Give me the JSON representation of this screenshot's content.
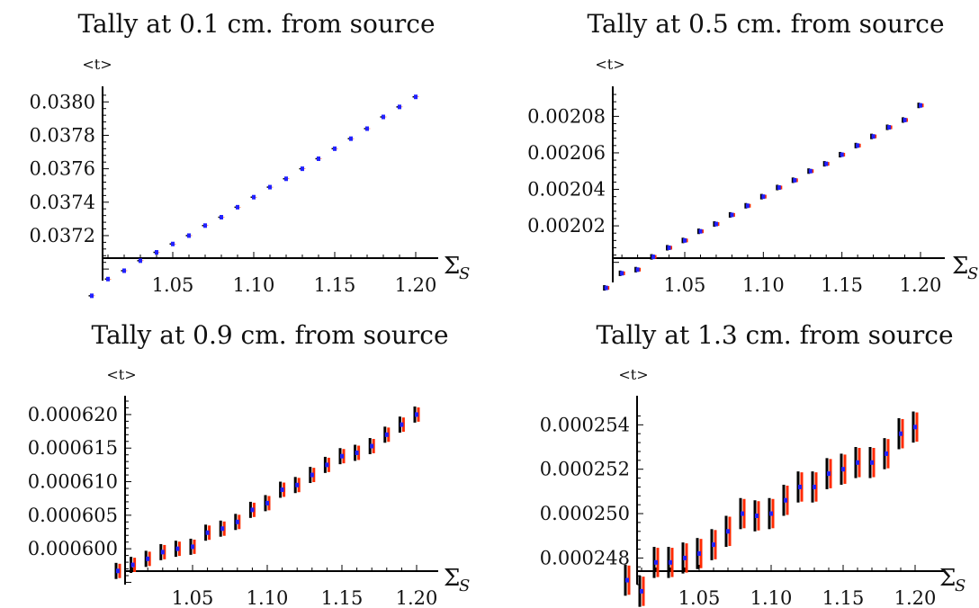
{
  "chart_data": [
    {
      "type": "scatter",
      "title": "Tally at 0.1 cm. from source",
      "ylabel": "<t>",
      "xlabel": "Σ",
      "xlabel_sub": "S",
      "xlim": [
        1.0,
        1.2
      ],
      "ylim": [
        0.03692,
        0.03805
      ],
      "xticks": [
        1.05,
        1.1,
        1.15,
        1.2
      ],
      "xtick_labels": [
        "1.05",
        "1.10",
        "1.15",
        "1.20"
      ],
      "yticks": [
        0.0372,
        0.0374,
        0.0376,
        0.0378,
        0.038
      ],
      "ytick_labels": [
        "0.0372",
        "0.0374",
        "0.0376",
        "0.0378",
        "0.0380"
      ],
      "grid": false,
      "x": [
        1.0,
        1.01,
        1.02,
        1.03,
        1.04,
        1.05,
        1.06,
        1.07,
        1.08,
        1.09,
        1.1,
        1.11,
        1.12,
        1.13,
        1.14,
        1.15,
        1.16,
        1.17,
        1.18,
        1.19,
        1.2
      ],
      "y": [
        0.03684,
        0.03694,
        0.03699,
        0.03705,
        0.0371,
        0.03715,
        0.0372,
        0.03726,
        0.03731,
        0.03737,
        0.03743,
        0.03749,
        0.03754,
        0.0376,
        0.03766,
        0.03772,
        0.03778,
        0.03784,
        0.03791,
        0.03797,
        0.03803
      ],
      "err": [
        4e-06,
        4e-06,
        4e-06,
        4e-06,
        4e-06,
        4e-06,
        4e-06,
        4e-06,
        4e-06,
        4e-06,
        4e-06,
        4e-06,
        4e-06,
        4e-06,
        4e-06,
        4e-06,
        4e-06,
        4e-06,
        4e-06,
        4e-06,
        4e-06
      ]
    },
    {
      "type": "scatter",
      "title": "Tally at 0.5 cm. from source",
      "ylabel": "<t>",
      "xlabel": "Σ",
      "xlabel_sub": "S",
      "xlim": [
        1.0,
        1.2
      ],
      "ylim": [
        0.001989,
        0.002093
      ],
      "xticks": [
        1.05,
        1.1,
        1.15,
        1.2
      ],
      "xtick_labels": [
        "1.05",
        "1.10",
        "1.15",
        "1.20"
      ],
      "yticks": [
        0.00202,
        0.00204,
        0.00206,
        0.00208
      ],
      "ytick_labels": [
        "0.00202",
        "0.00204",
        "0.00206",
        "0.00208"
      ],
      "grid": false,
      "x": [
        1.0,
        1.01,
        1.02,
        1.03,
        1.04,
        1.05,
        1.06,
        1.07,
        1.08,
        1.09,
        1.1,
        1.11,
        1.12,
        1.13,
        1.14,
        1.15,
        1.16,
        1.17,
        1.18,
        1.19,
        1.2
      ],
      "y": [
        0.001986,
        0.001994,
        0.001996,
        0.002003,
        0.002008,
        0.002012,
        0.002017,
        0.002021,
        0.002026,
        0.002031,
        0.002036,
        0.002041,
        0.002045,
        0.00205,
        0.002054,
        0.002059,
        0.002064,
        0.002069,
        0.002074,
        0.002078,
        0.002086
      ],
      "err": [
        1.5e-06,
        1.5e-06,
        1.5e-06,
        1.5e-06,
        1.5e-06,
        1.5e-06,
        1.5e-06,
        1.5e-06,
        1.5e-06,
        1.5e-06,
        1.5e-06,
        1.5e-06,
        1.5e-06,
        1.5e-06,
        1.5e-06,
        1.5e-06,
        1.5e-06,
        1.5e-06,
        1.5e-06,
        1.5e-06,
        1.5e-06
      ]
    },
    {
      "type": "scatter",
      "title": "Tally at 0.9 cm. from source",
      "ylabel": "<t>",
      "xlabel": "Σ",
      "xlabel_sub": "S",
      "xlim": [
        1.0,
        1.2
      ],
      "ylim": [
        0.000596,
        0.000622
      ],
      "xticks": [
        1.05,
        1.1,
        1.15,
        1.2
      ],
      "xtick_labels": [
        "1.05",
        "1.10",
        "1.15",
        "1.20"
      ],
      "yticks": [
        0.0006,
        0.000605,
        0.00061,
        0.000615,
        0.00062
      ],
      "ytick_labels": [
        "0.000600",
        "0.000605",
        "0.000610",
        "0.000615",
        "0.000620"
      ],
      "grid": false,
      "x": [
        1.0,
        1.01,
        1.02,
        1.03,
        1.04,
        1.05,
        1.06,
        1.07,
        1.08,
        1.09,
        1.1,
        1.11,
        1.12,
        1.13,
        1.14,
        1.15,
        1.16,
        1.17,
        1.18,
        1.19,
        1.2
      ],
      "y": [
        0.0005967,
        0.0005976,
        0.0005985,
        0.0005995,
        0.0006,
        0.0006003,
        0.0006024,
        0.000603,
        0.000604,
        0.0006058,
        0.0006068,
        0.0006088,
        0.0006095,
        0.000611,
        0.0006125,
        0.0006138,
        0.0006143,
        0.0006153,
        0.000617,
        0.0006185,
        0.00062
      ],
      "err": [
        1.2e-06,
        1.2e-06,
        1.2e-06,
        1.2e-06,
        1.2e-06,
        1.2e-06,
        1.2e-06,
        1.2e-06,
        1.2e-06,
        1.2e-06,
        1.2e-06,
        1.2e-06,
        1.2e-06,
        1.2e-06,
        1.2e-06,
        1.2e-06,
        1.2e-06,
        1.2e-06,
        1.2e-06,
        1.2e-06,
        1.2e-06
      ]
    },
    {
      "type": "scatter",
      "title": "Tally at 1.3 cm. from source",
      "ylabel": "<t>",
      "xlabel": "Σ",
      "xlabel_sub": "S",
      "xlim": [
        1.0,
        1.2
      ],
      "ylim": [
        0.0002468,
        0.0002545
      ],
      "xticks": [
        1.05,
        1.1,
        1.15,
        1.2
      ],
      "xtick_labels": [
        "1.05",
        "1.10",
        "1.15",
        "1.20"
      ],
      "yticks": [
        0.000248,
        0.00025,
        0.000252,
        0.000254
      ],
      "ytick_labels": [
        "0.000248",
        "0.000250",
        "0.000252",
        "0.000254"
      ],
      "grid": false,
      "x": [
        1.0,
        1.01,
        1.02,
        1.03,
        1.04,
        1.05,
        1.06,
        1.07,
        1.08,
        1.09,
        1.1,
        1.11,
        1.12,
        1.13,
        1.14,
        1.15,
        1.16,
        1.17,
        1.18,
        1.19,
        1.2
      ],
      "y": [
        0.000247,
        0.0002465,
        0.0002478,
        0.0002478,
        0.000248,
        0.0002482,
        0.0002486,
        0.0002492,
        0.00025,
        0.0002499,
        0.00025,
        0.0002506,
        0.0002512,
        0.0002512,
        0.0002518,
        0.000252,
        0.0002523,
        0.0002523,
        0.0002527,
        0.0002536,
        0.0002539
      ],
      "err": [
        7e-07,
        7e-07,
        7e-07,
        7e-07,
        7e-07,
        7e-07,
        7e-07,
        7e-07,
        7e-07,
        7e-07,
        7e-07,
        7e-07,
        7e-07,
        7e-07,
        7e-07,
        7e-07,
        7e-07,
        7e-07,
        7e-07,
        7e-07,
        7e-07
      ]
    }
  ],
  "colors": {
    "error_bar": "#000000",
    "inner_error_bar": "#ff2a00",
    "point": "#2222ff",
    "axis": "#000000"
  }
}
